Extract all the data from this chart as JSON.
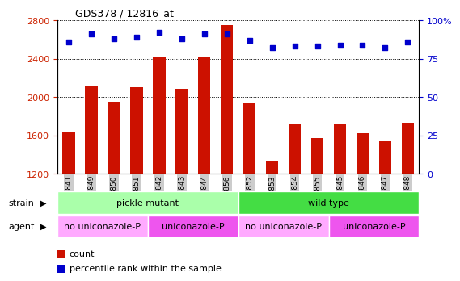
{
  "title": "GDS378 / 12816_at",
  "samples": [
    "GSM3841",
    "GSM3849",
    "GSM3850",
    "GSM3851",
    "GSM3842",
    "GSM3843",
    "GSM3844",
    "GSM3856",
    "GSM3852",
    "GSM3853",
    "GSM3854",
    "GSM3855",
    "GSM3845",
    "GSM3846",
    "GSM3847",
    "GSM3848"
  ],
  "counts": [
    1640,
    2110,
    1950,
    2100,
    2420,
    2085,
    2420,
    2750,
    1940,
    1340,
    1720,
    1570,
    1720,
    1620,
    1540,
    1730
  ],
  "percentiles": [
    86,
    91,
    88,
    89,
    92,
    88,
    91,
    91,
    87,
    82,
    83,
    83,
    84,
    84,
    82,
    86
  ],
  "ylim_left": [
    1200,
    2800
  ],
  "ylim_right": [
    0,
    100
  ],
  "yticks_left": [
    1200,
    1600,
    2000,
    2400,
    2800
  ],
  "yticks_right": [
    0,
    25,
    50,
    75,
    100
  ],
  "bar_color": "#cc1100",
  "dot_color": "#0000cc",
  "bar_width": 0.55,
  "strain_groups": [
    {
      "label": "pickle mutant",
      "start": 0,
      "end": 8,
      "color": "#aaffaa"
    },
    {
      "label": "wild type",
      "start": 8,
      "end": 16,
      "color": "#44dd44"
    }
  ],
  "agent_groups": [
    {
      "label": "no uniconazole-P",
      "start": 0,
      "end": 4,
      "color": "#ffaaff"
    },
    {
      "label": "uniconazole-P",
      "start": 4,
      "end": 8,
      "color": "#ee55ee"
    },
    {
      "label": "no uniconazole-P",
      "start": 8,
      "end": 12,
      "color": "#ffaaff"
    },
    {
      "label": "uniconazole-P",
      "start": 12,
      "end": 16,
      "color": "#ee55ee"
    }
  ],
  "legend_items": [
    {
      "label": "count",
      "color": "#cc1100"
    },
    {
      "label": "percentile rank within the sample",
      "color": "#0000cc"
    }
  ],
  "tick_color_left": "#cc2200",
  "tick_color_right": "#0000cc",
  "xticklabel_bg": "#cccccc",
  "strain_label": "strain",
  "agent_label": "agent",
  "grid_color": "black",
  "grid_style": "dotted",
  "right_ytick_labels": [
    "0",
    "25",
    "50",
    "75",
    "100%"
  ]
}
